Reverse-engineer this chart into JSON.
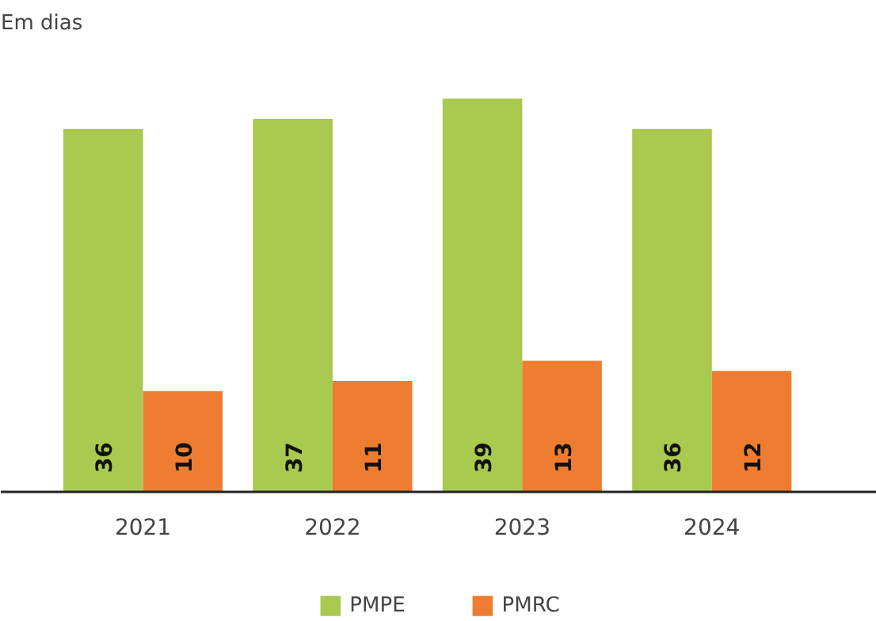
{
  "chart_data": {
    "type": "bar",
    "title": "Em dias",
    "categories": [
      "2021",
      "2022",
      "2023",
      "2024"
    ],
    "series": [
      {
        "name": "PMPE",
        "color": "#a9c94f",
        "values": [
          36,
          37,
          39,
          36
        ]
      },
      {
        "name": "PMRC",
        "color": "#ef7d31",
        "values": [
          10,
          11,
          13,
          12
        ]
      }
    ],
    "tick_labels": "x",
    "data_labels": true,
    "legend": "bottom"
  }
}
